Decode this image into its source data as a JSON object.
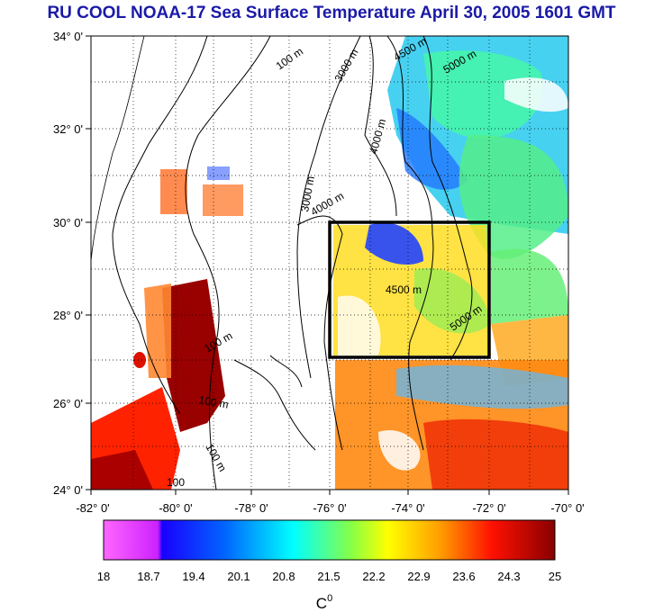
{
  "title": "RU COOL  NOAA-17 Sea Surface Temperature April 30, 2005 1601 GMT",
  "axes": {
    "lat_ticks": [
      "34° 0'",
      "32° 0'",
      "30° 0'",
      "28° 0'",
      "26° 0'",
      "24° 0'"
    ],
    "lon_ticks": [
      "-82° 0'",
      "-80° 0'",
      "-78° 0'",
      "-76° 0'",
      "-74° 0'",
      "-72° 0'",
      "-70° 0'"
    ],
    "lat_range": [
      24,
      34
    ],
    "lon_range": [
      -82,
      -70
    ],
    "grid": "dotted"
  },
  "colorbar": {
    "ticks": [
      "18",
      "18.7",
      "19.4",
      "20.1",
      "20.8",
      "21.5",
      "22.2",
      "22.9",
      "23.6",
      "24.3",
      "25"
    ],
    "unit_label": "C",
    "unit_superscript": "0",
    "range": [
      18,
      25
    ],
    "colors": [
      "#ff66ff",
      "#0000ff",
      "#00ffff",
      "#ffff00",
      "#ff8800",
      "#ff0000",
      "#880000"
    ]
  },
  "contour_labels": [
    "100 m",
    "3000 m",
    "4500 m",
    "5000 m",
    "4000 m",
    "3000 m",
    "4000 m",
    "4500 m",
    "5000 m",
    "100 m",
    "100 m",
    "100 m",
    "100"
  ],
  "study_box": {
    "lon": [
      -76,
      -72
    ],
    "lat": [
      27,
      30
    ]
  }
}
